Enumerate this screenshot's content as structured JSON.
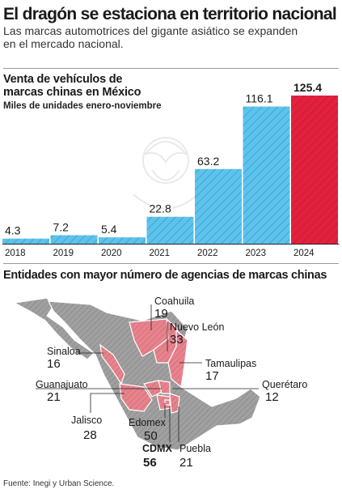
{
  "header": {
    "title": "El dragón se estaciona en territorio nacional",
    "subtitle": "Las marcas automotrices del gigante asiático se expanden en el mercado nacional."
  },
  "chart_data": {
    "type": "bar",
    "title": "Venta de vehículos de marcas chinas en México",
    "subtitle": "Miles de unidades enero-noviembre",
    "categories": [
      "2018",
      "2019",
      "2020",
      "2021",
      "2022",
      "2023",
      "2024"
    ],
    "values": [
      4.3,
      7.2,
      5.4,
      22.8,
      63.2,
      116.1,
      125.4
    ],
    "value_labels": [
      "4.3",
      "7.2",
      "5.4",
      "22.8",
      "63.2",
      "116.1",
      "125.4"
    ],
    "highlight_index": 6,
    "colors": {
      "bar": "#5ec3ec",
      "highlight": "#e3213f",
      "hatch": "#2b8ec0"
    },
    "ylim": [
      0,
      125.4
    ]
  },
  "map": {
    "title": "Entidades con mayor número de agencias de marcas chinas",
    "colors": {
      "highlight": "#e6838d",
      "base": "#a0a0a0"
    },
    "entities": [
      {
        "name": "Coahuila",
        "value": "19"
      },
      {
        "name": "Nuevo León",
        "value": "33"
      },
      {
        "name": "Sinaloa",
        "value": "16"
      },
      {
        "name": "Tamaulipas",
        "value": "17"
      },
      {
        "name": "Guanajuato",
        "value": "21"
      },
      {
        "name": "Querétaro",
        "value": "12"
      },
      {
        "name": "Jalisco",
        "value": "28"
      },
      {
        "name": "Edomex",
        "value": "50"
      },
      {
        "name": "CDMX",
        "value": "56"
      },
      {
        "name": "Puebla",
        "value": "21"
      }
    ]
  },
  "source": "Fuente: Inegi y Urban Science."
}
